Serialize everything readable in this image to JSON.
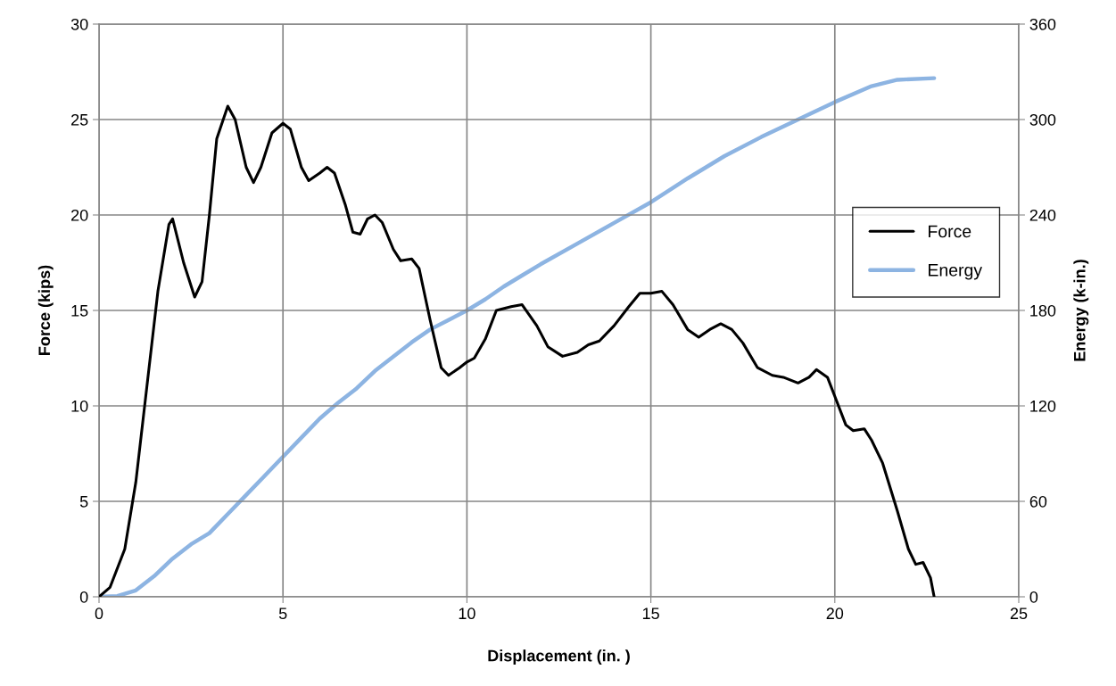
{
  "chart_data": {
    "type": "line",
    "xlabel": "Displacement (in. )",
    "ylabel": "Force (kips)",
    "y2label": "Energy (k-in.)",
    "xlim": [
      0,
      25
    ],
    "xticks": [
      0,
      5,
      10,
      15,
      20,
      25
    ],
    "ylim": [
      0,
      30
    ],
    "yticks": [
      0,
      5,
      10,
      15,
      20,
      25,
      30
    ],
    "y2lim": [
      0,
      360
    ],
    "y2ticks": [
      0,
      60,
      120,
      180,
      240,
      300,
      360
    ],
    "grid": true,
    "legend": "right",
    "marker": "none",
    "line_style": "solid",
    "series": [
      {
        "name": "Force",
        "color": "#000000",
        "x": [
          0,
          0.3,
          0.7,
          1.0,
          1.3,
          1.6,
          1.9,
          2.0,
          2.3,
          2.6,
          2.8,
          3.0,
          3.2,
          3.5,
          3.7,
          4.0,
          4.2,
          4.4,
          4.7,
          5.0,
          5.2,
          5.5,
          5.7,
          6.0,
          6.2,
          6.4,
          6.7,
          6.9,
          7.1,
          7.3,
          7.5,
          7.7,
          8.0,
          8.2,
          8.5,
          8.7,
          9.0,
          9.3,
          9.5,
          9.8,
          10.0,
          10.2,
          10.5,
          10.8,
          11.2,
          11.5,
          11.9,
          12.2,
          12.6,
          13.0,
          13.3,
          13.6,
          14.0,
          14.4,
          14.7,
          15.0,
          15.3,
          15.6,
          16.0,
          16.3,
          16.6,
          16.9,
          17.2,
          17.5,
          17.9,
          18.3,
          18.6,
          19.0,
          19.3,
          19.5,
          19.8,
          20.0,
          20.3,
          20.5,
          20.8,
          21.0,
          21.3,
          21.7,
          22.0,
          22.2,
          22.4,
          22.6,
          22.7
        ],
        "values": [
          0,
          0.5,
          2.5,
          6,
          11,
          16,
          19.5,
          19.8,
          17.5,
          15.7,
          16.5,
          20,
          24,
          25.7,
          25,
          22.5,
          21.7,
          22.5,
          24.3,
          24.8,
          24.5,
          22.5,
          21.8,
          22.2,
          22.5,
          22.2,
          20.5,
          19.1,
          19,
          19.8,
          20,
          19.6,
          18.2,
          17.6,
          17.7,
          17.2,
          14.5,
          12,
          11.6,
          12,
          12.3,
          12.5,
          13.5,
          15,
          15.2,
          15.3,
          14.2,
          13.1,
          12.6,
          12.8,
          13.2,
          13.4,
          14.2,
          15.2,
          15.9,
          15.9,
          16,
          15.3,
          14,
          13.6,
          14,
          14.3,
          14,
          13.3,
          12,
          11.6,
          11.5,
          11.2,
          11.5,
          11.9,
          11.5,
          10.5,
          9,
          8.7,
          8.8,
          8.2,
          7,
          4.5,
          2.5,
          1.7,
          1.8,
          1,
          0
        ]
      },
      {
        "name": "Energy",
        "color": "#8db4e2",
        "axis": "y2",
        "x": [
          0,
          0.5,
          1.0,
          1.5,
          2.0,
          2.5,
          3.0,
          3.5,
          4.0,
          4.5,
          5.0,
          5.5,
          6.0,
          6.5,
          7.0,
          7.5,
          8.0,
          8.5,
          9.0,
          9.5,
          10.0,
          10.5,
          11.0,
          11.5,
          12.0,
          13.0,
          14.0,
          15.0,
          16.0,
          17.0,
          18.0,
          19.0,
          20.0,
          21.0,
          21.7,
          22.7
        ],
        "values": [
          0,
          0.5,
          4,
          13,
          24,
          33,
          40,
          52,
          64,
          76,
          88,
          100,
          112,
          122,
          131,
          142,
          151,
          160,
          168,
          174,
          180,
          187,
          195,
          202,
          209,
          222,
          235,
          248,
          263,
          277,
          289,
          300,
          311,
          321,
          325,
          326
        ]
      }
    ]
  }
}
